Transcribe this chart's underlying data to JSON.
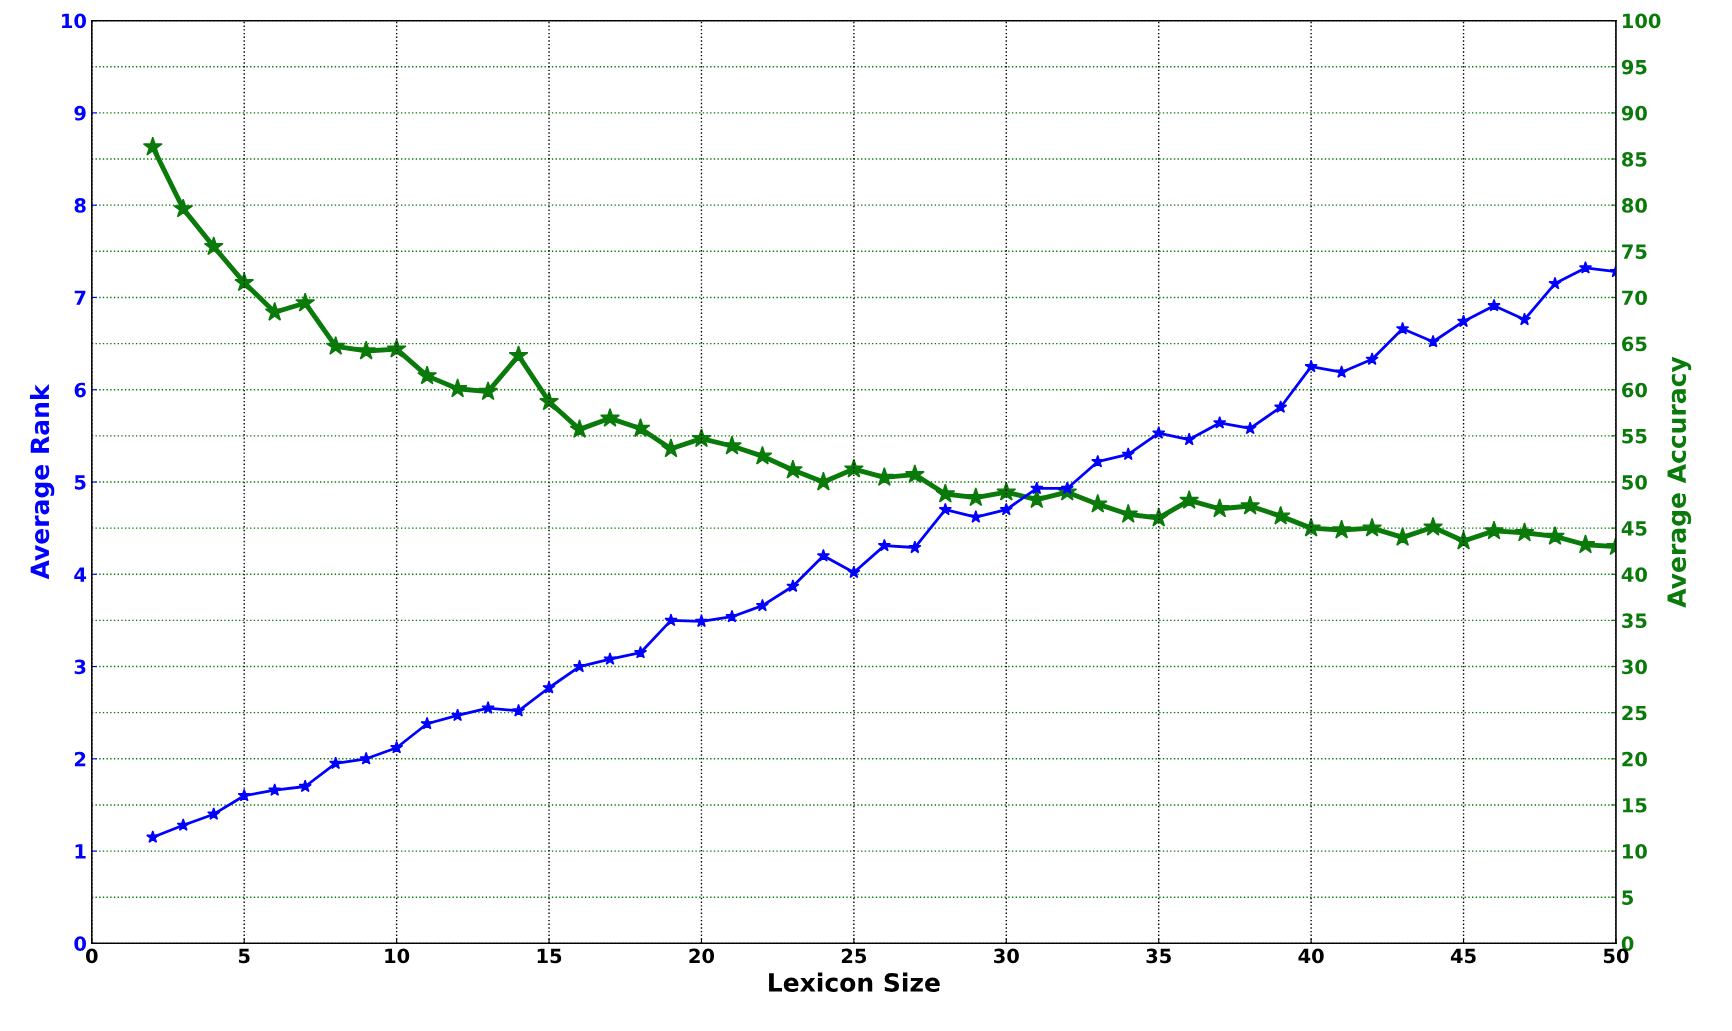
{
  "chart_data": {
    "type": "line",
    "xlabel": "Lexicon Size",
    "ylabel": "Average Rank",
    "y2label": "Average Accuracy",
    "x": [
      2,
      3,
      4,
      5,
      6,
      7,
      8,
      9,
      10,
      11,
      12,
      13,
      14,
      15,
      16,
      17,
      18,
      19,
      20,
      21,
      22,
      23,
      24,
      25,
      26,
      27,
      28,
      29,
      30,
      31,
      32,
      33,
      34,
      35,
      36,
      37,
      38,
      39,
      40,
      41,
      42,
      43,
      44,
      45,
      46,
      47,
      48,
      49,
      50
    ],
    "series": [
      {
        "color": "#0000ff",
        "values": [
          1.15,
          1.28,
          1.4,
          1.6,
          1.66,
          1.7,
          1.95,
          2.0,
          2.12,
          2.38,
          2.47,
          2.55,
          2.52,
          2.77,
          3.0,
          3.08,
          3.15,
          3.5,
          3.49,
          3.54,
          3.66,
          3.87,
          4.2,
          4.02,
          4.31,
          4.29,
          4.7,
          4.62,
          4.7,
          4.93,
          4.93,
          5.22,
          5.3,
          5.53,
          5.46,
          5.64,
          5.58,
          5.81,
          6.25,
          6.19,
          6.33,
          6.66,
          6.52,
          6.74,
          6.91,
          6.76,
          7.15,
          7.32,
          7.28
        ]
      },
      {
        "color": "#0a7a0a",
        "axis": "y2",
        "values": [
          86.3,
          79.6,
          75.5,
          71.6,
          68.4,
          69.4,
          64.7,
          64.2,
          64.4,
          61.5,
          60.1,
          59.8,
          63.7,
          58.7,
          55.7,
          56.9,
          55.8,
          53.6,
          54.7,
          53.9,
          52.8,
          51.3,
          50.0,
          51.4,
          50.5,
          50.8,
          48.7,
          48.3,
          48.9,
          48.1,
          48.9,
          47.6,
          46.5,
          46.1,
          48.0,
          47.1,
          47.4,
          46.3,
          45.0,
          44.8,
          45.0,
          44.0,
          45.1,
          43.6,
          44.7,
          44.5,
          44.1,
          43.2,
          43.0
        ]
      }
    ],
    "xlim": [
      0,
      50
    ],
    "xticks": [
      0,
      5,
      10,
      15,
      20,
      25,
      30,
      35,
      40,
      45,
      50
    ],
    "ylim": [
      0,
      10
    ],
    "yticks": [
      0,
      1,
      2,
      3,
      4,
      5,
      6,
      7,
      8,
      9,
      10
    ],
    "y2lim": [
      0,
      100
    ],
    "y2ticks": [
      0,
      5,
      10,
      15,
      20,
      25,
      30,
      35,
      40,
      45,
      50,
      55,
      60,
      65,
      70,
      75,
      80,
      85,
      90,
      95,
      100
    ],
    "grid": true,
    "marker": "star",
    "line_style": "solid",
    "legend": false
  }
}
